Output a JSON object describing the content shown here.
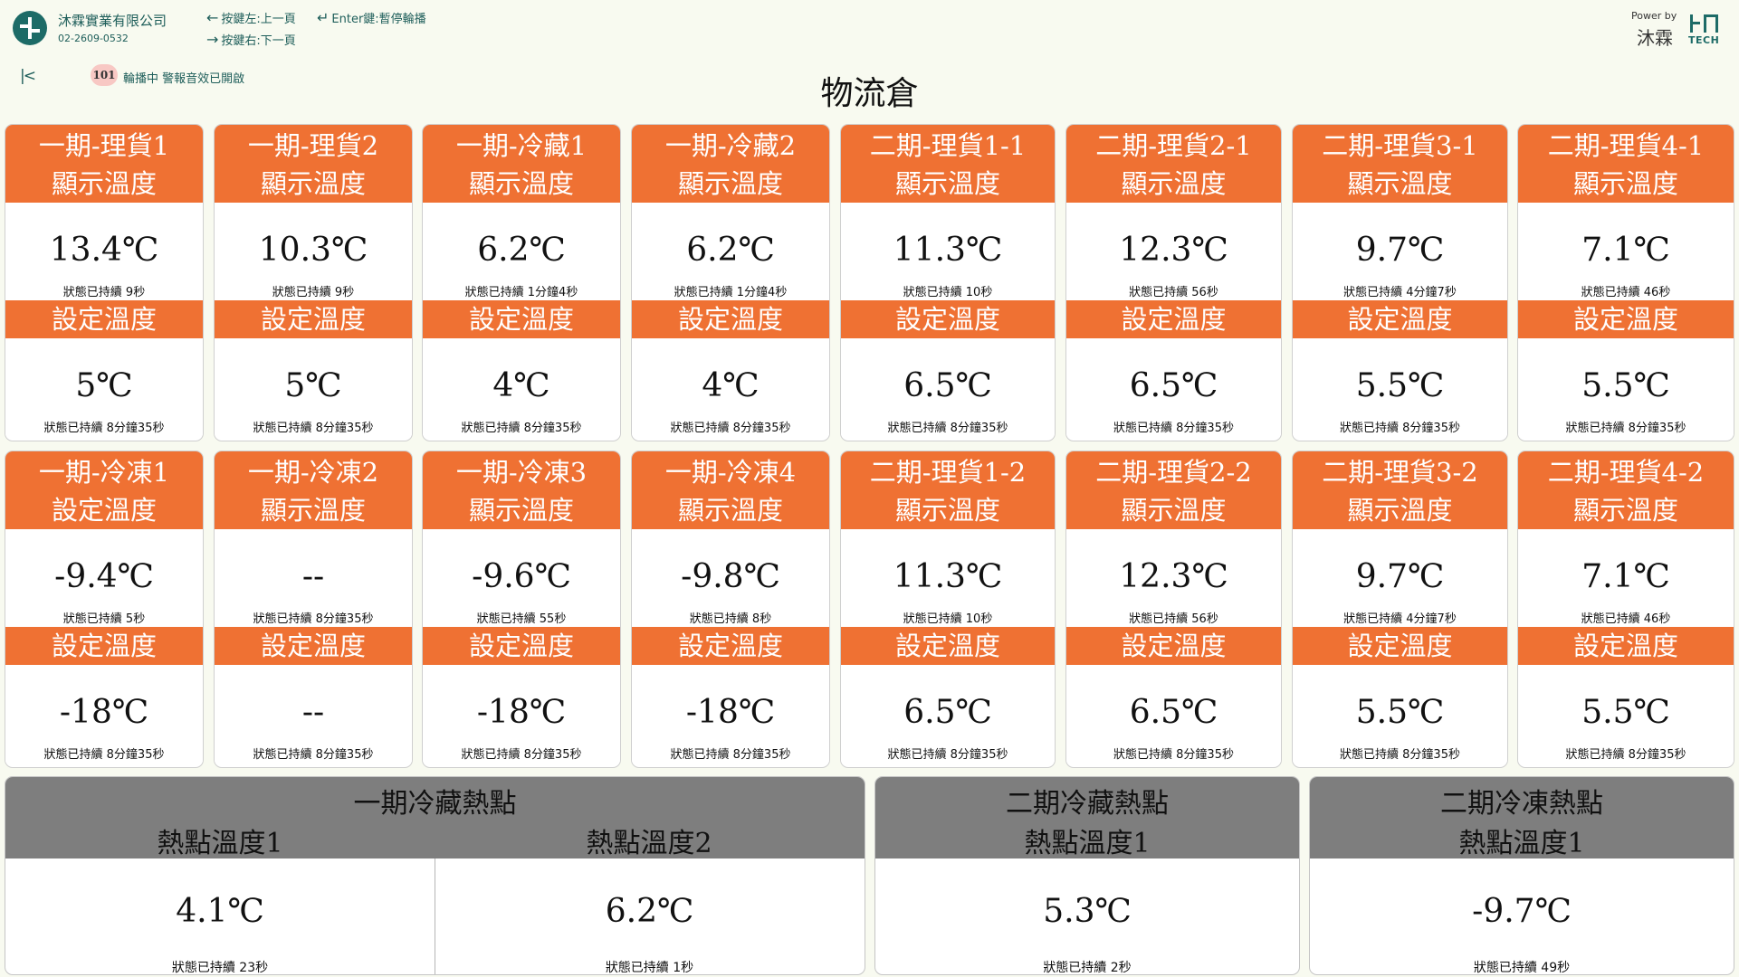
{
  "header": {
    "company_name": "沐霖實業有限公司",
    "company_phone": "02-2609-0532",
    "hint_left": "按鍵左:上一頁",
    "hint_enter": "Enter鍵:暫停輪播",
    "hint_right": "按鍵右:下一頁",
    "power_by": "Power by",
    "power_name": "沐霖",
    "tech_text": "TECH",
    "first_icon": "first-page-icon",
    "badge": "101",
    "status_text": "輪播中  警報音效已開啟",
    "page_title": "物流倉"
  },
  "colors": {
    "accent": "#ef7133",
    "header_gray": "#7e7e7e",
    "brand": "#1d6b67"
  },
  "rows": [
    {
      "cards": [
        {
          "title": "一期-理貨1",
          "label1": "顯示溫度",
          "value1": "13.4℃",
          "dur1": "狀態已持續 9秒",
          "label2": "設定溫度",
          "value2": "5℃",
          "dur2": "狀態已持續 8分鐘35秒"
        },
        {
          "title": "一期-理貨2",
          "label1": "顯示溫度",
          "value1": "10.3℃",
          "dur1": "狀態已持續 9秒",
          "label2": "設定溫度",
          "value2": "5℃",
          "dur2": "狀態已持續 8分鐘35秒"
        },
        {
          "title": "一期-冷藏1",
          "label1": "顯示溫度",
          "value1": "6.2℃",
          "dur1": "狀態已持續 1分鐘4秒",
          "label2": "設定溫度",
          "value2": "4℃",
          "dur2": "狀態已持續 8分鐘35秒"
        },
        {
          "title": "一期-冷藏2",
          "label1": "顯示溫度",
          "value1": "6.2℃",
          "dur1": "狀態已持續 1分鐘4秒",
          "label2": "設定溫度",
          "value2": "4℃",
          "dur2": "狀態已持續 8分鐘35秒"
        },
        {
          "title": "二期-理貨1-1",
          "label1": "顯示溫度",
          "value1": "11.3℃",
          "dur1": "狀態已持續 10秒",
          "label2": "設定溫度",
          "value2": "6.5℃",
          "dur2": "狀態已持續 8分鐘35秒"
        },
        {
          "title": "二期-理貨2-1",
          "label1": "顯示溫度",
          "value1": "12.3℃",
          "dur1": "狀態已持續 56秒",
          "label2": "設定溫度",
          "value2": "6.5℃",
          "dur2": "狀態已持續 8分鐘35秒"
        },
        {
          "title": "二期-理貨3-1",
          "label1": "顯示溫度",
          "value1": "9.7℃",
          "dur1": "狀態已持續 4分鐘7秒",
          "label2": "設定溫度",
          "value2": "5.5℃",
          "dur2": "狀態已持續 8分鐘35秒"
        },
        {
          "title": "二期-理貨4-1",
          "label1": "顯示溫度",
          "value1": "7.1℃",
          "dur1": "狀態已持續 46秒",
          "label2": "設定溫度",
          "value2": "5.5℃",
          "dur2": "狀態已持續 8分鐘35秒"
        }
      ]
    },
    {
      "cards": [
        {
          "title": "一期-冷凍1",
          "label1": "設定溫度",
          "value1": "-9.4℃",
          "dur1": "狀態已持續 5秒",
          "label2": "設定溫度",
          "value2": "-18℃",
          "dur2": "狀態已持續 8分鐘35秒"
        },
        {
          "title": "一期-冷凍2",
          "label1": "顯示溫度",
          "value1": "--",
          "dur1": "狀態已持續 8分鐘35秒",
          "label2": "設定溫度",
          "value2": "--",
          "dur2": "狀態已持續 8分鐘35秒"
        },
        {
          "title": "一期-冷凍3",
          "label1": "顯示溫度",
          "value1": "-9.6℃",
          "dur1": "狀態已持續 55秒",
          "label2": "設定溫度",
          "value2": "-18℃",
          "dur2": "狀態已持續 8分鐘35秒"
        },
        {
          "title": "一期-冷凍4",
          "label1": "顯示溫度",
          "value1": "-9.8℃",
          "dur1": "狀態已持續 8秒",
          "label2": "設定溫度",
          "value2": "-18℃",
          "dur2": "狀態已持續 8分鐘35秒"
        },
        {
          "title": "二期-理貨1-2",
          "label1": "顯示溫度",
          "value1": "11.3℃",
          "dur1": "狀態已持續 10秒",
          "label2": "設定溫度",
          "value2": "6.5℃",
          "dur2": "狀態已持續 8分鐘35秒"
        },
        {
          "title": "二期-理貨2-2",
          "label1": "顯示溫度",
          "value1": "12.3℃",
          "dur1": "狀態已持續 56秒",
          "label2": "設定溫度",
          "value2": "6.5℃",
          "dur2": "狀態已持續 8分鐘35秒"
        },
        {
          "title": "二期-理貨3-2",
          "label1": "顯示溫度",
          "value1": "9.7℃",
          "dur1": "狀態已持續 4分鐘7秒",
          "label2": "設定溫度",
          "value2": "5.5℃",
          "dur2": "狀態已持續 8分鐘35秒"
        },
        {
          "title": "二期-理貨4-2",
          "label1": "顯示溫度",
          "value1": "7.1℃",
          "dur1": "狀態已持續 46秒",
          "label2": "設定溫度",
          "value2": "5.5℃",
          "dur2": "狀態已持續 8分鐘35秒"
        }
      ]
    }
  ],
  "hotspots": [
    {
      "title": "一期冷藏熱點",
      "items": [
        {
          "label": "熱點溫度1",
          "value": "4.1℃",
          "dur": "狀態已持續 23秒"
        },
        {
          "label": "熱點溫度2",
          "value": "6.2℃",
          "dur": "狀態已持續 1秒"
        }
      ]
    },
    {
      "title": "二期冷藏熱點",
      "items": [
        {
          "label": "熱點溫度1",
          "value": "5.3℃",
          "dur": "狀態已持續 2秒"
        }
      ]
    },
    {
      "title": "二期冷凍熱點",
      "items": [
        {
          "label": "熱點溫度1",
          "value": "-9.7℃",
          "dur": "狀態已持續 49秒"
        }
      ]
    }
  ]
}
